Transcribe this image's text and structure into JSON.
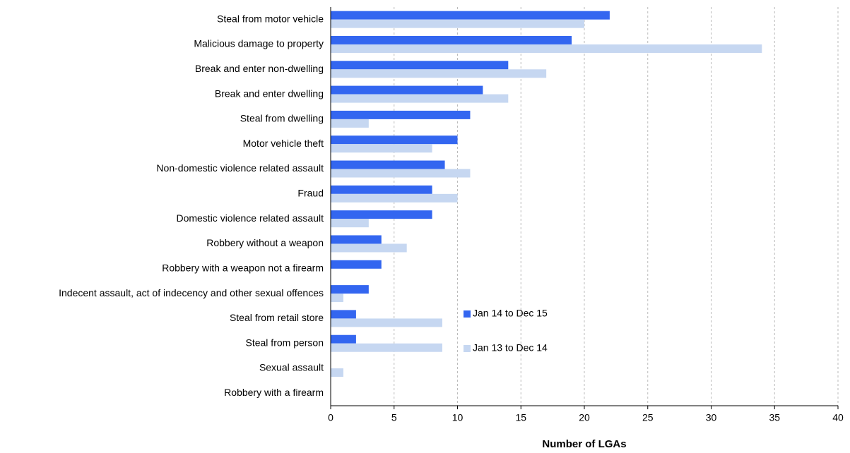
{
  "chart_data": {
    "type": "hbar",
    "x_label": "Number of LGAs",
    "categories": [
      "Steal from motor vehicle",
      "Malicious damage to property",
      "Break and enter non-dwelling",
      "Break and enter dwelling",
      "Steal from dwelling",
      "Motor vehicle theft",
      "Non-domestic violence related assault",
      "Fraud",
      "Domestic violence related assault",
      "Robbery without a weapon",
      "Robbery with a weapon not a firearm",
      "Indecent assault, act of indecency and other sexual offences",
      "Steal from retail store",
      "Steal from person",
      "Sexual assault",
      "Robbery with a firearm"
    ],
    "series": [
      {
        "name": "Jan 14 to Dec 15",
        "color": "#3366f0",
        "values": [
          22,
          19,
          14,
          12,
          11,
          10,
          9,
          8,
          8,
          4,
          4,
          3,
          2,
          2,
          0,
          0
        ]
      },
      {
        "name": "Jan 13 to Dec 14",
        "color": "#c6d7f1",
        "values": [
          20,
          34,
          17,
          14,
          3,
          8,
          11,
          10,
          3,
          6,
          0,
          1,
          8.8,
          8.8,
          1,
          0
        ]
      }
    ],
    "xlim": [
      0,
      40
    ],
    "xticks": [
      0,
      5,
      10,
      15,
      20,
      25,
      30,
      35,
      40
    ],
    "grid": true
  }
}
